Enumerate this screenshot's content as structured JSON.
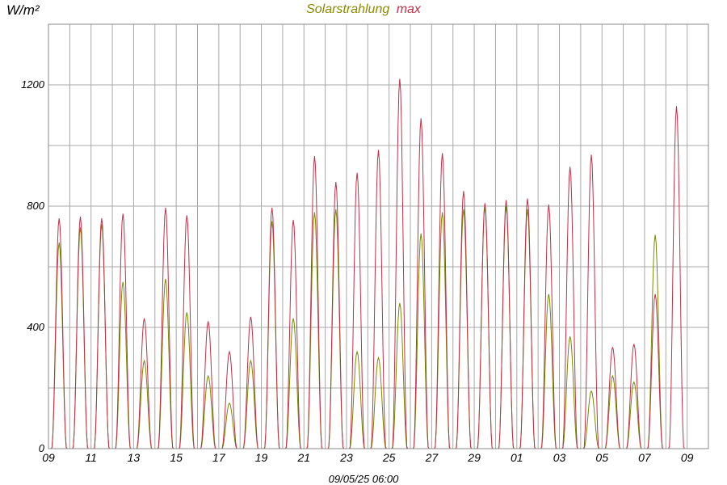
{
  "chart_data": {
    "type": "line",
    "title": "",
    "title_parts": [
      {
        "text": "Solarstrahlung",
        "color": "#8a8a00"
      },
      {
        "text": "max",
        "color": "#c0304a"
      }
    ],
    "ylabel": "W/m²",
    "xlabel": "09/05/25 06:00",
    "ylim": [
      0,
      1400
    ],
    "y_ticks": [
      0,
      400,
      800,
      1200
    ],
    "y_grid_step": 200,
    "grid": true,
    "x_tick_labels": [
      "09",
      "11",
      "13",
      "15",
      "17",
      "19",
      "21",
      "23",
      "25",
      "27",
      "29",
      "01",
      "03",
      "05",
      "07",
      "09"
    ],
    "days": 31,
    "series": [
      {
        "key": "solarstrahlung",
        "color": "#7a8a00",
        "daily_peaks": [
          680,
          730,
          740,
          550,
          290,
          560,
          450,
          240,
          150,
          290,
          750,
          430,
          780,
          790,
          320,
          300,
          480,
          710,
          780,
          790,
          800,
          800,
          790,
          510,
          370,
          190,
          240,
          220,
          705,
          0,
          0
        ]
      },
      {
        "key": "max",
        "color": "#c0304a",
        "daily_peaks": [
          760,
          765,
          760,
          775,
          430,
          795,
          770,
          420,
          320,
          435,
          795,
          755,
          965,
          880,
          910,
          985,
          1220,
          1090,
          975,
          850,
          810,
          820,
          825,
          805,
          930,
          970,
          335,
          345,
          510,
          1130,
          0
        ]
      }
    ]
  }
}
